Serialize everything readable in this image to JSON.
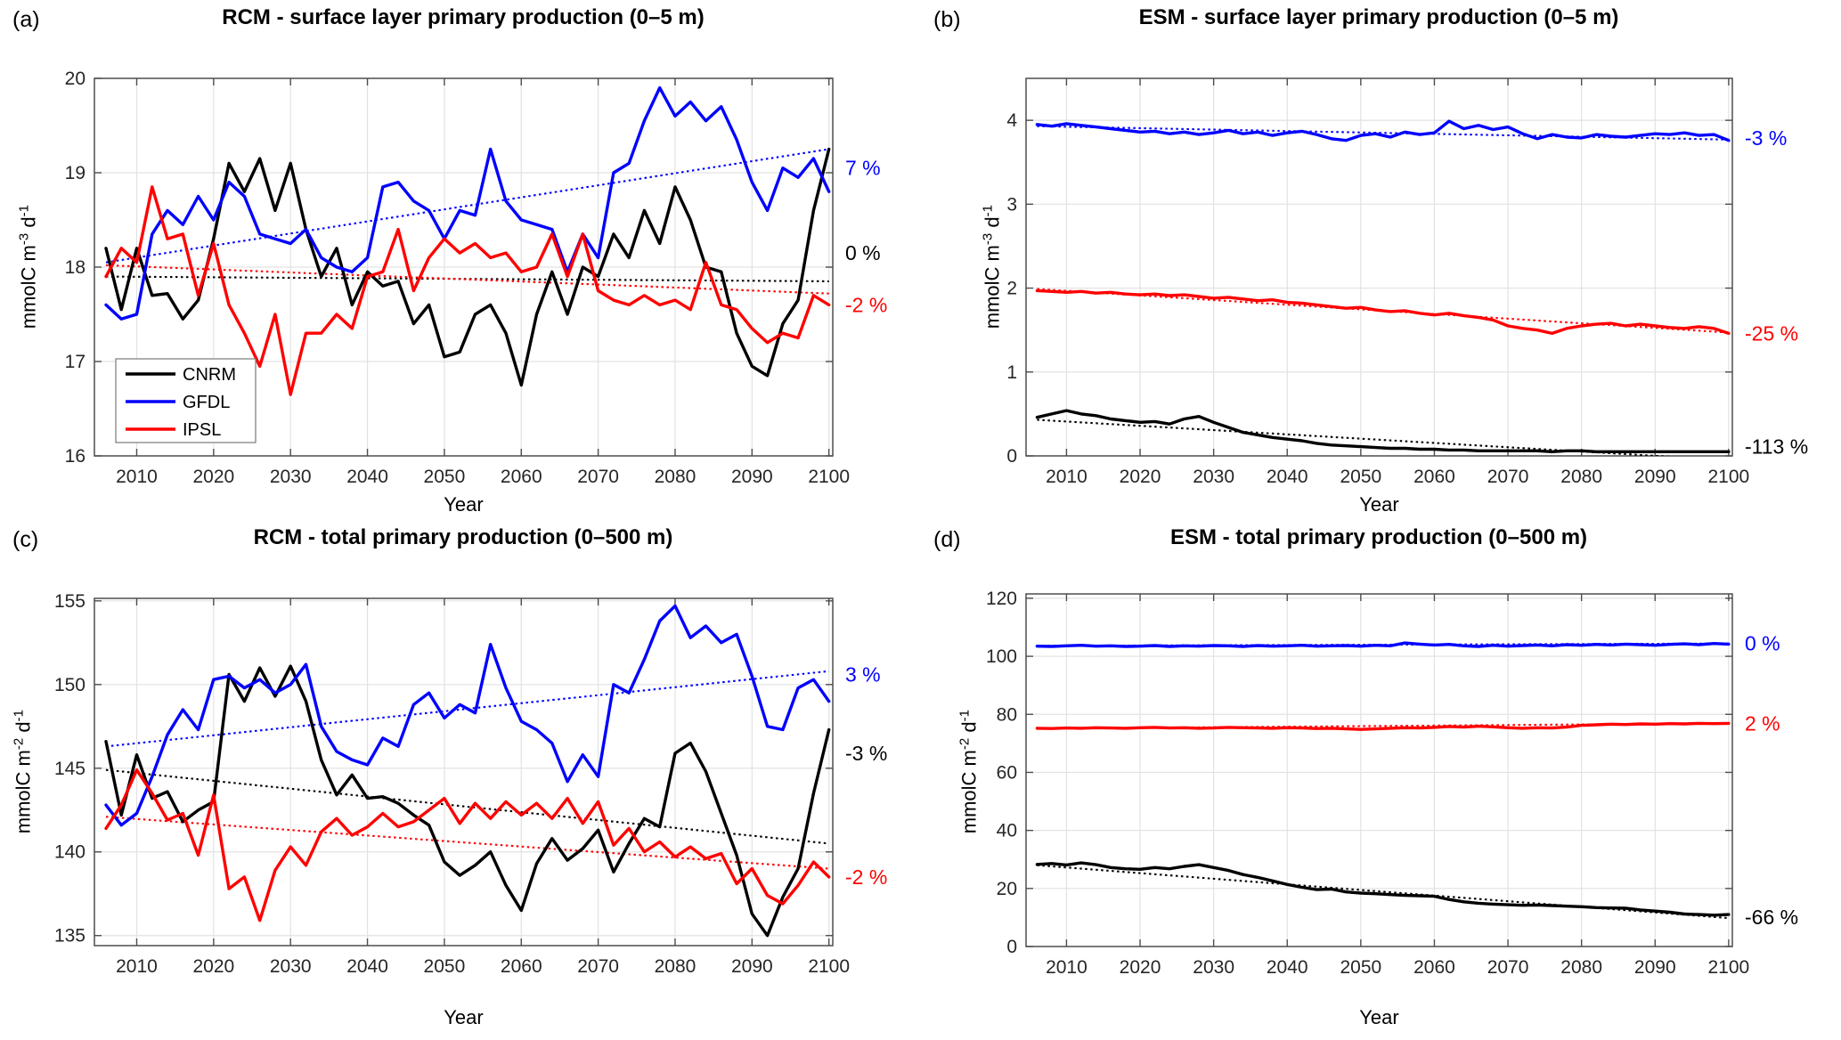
{
  "chart_data": {
    "type": "line",
    "x_start": 2006,
    "x_step": 2,
    "x_end": 2100,
    "xlim": [
      2004.5,
      2100.5
    ],
    "xticks": [
      2010,
      2020,
      2030,
      2040,
      2050,
      2060,
      2070,
      2080,
      2090,
      2100
    ],
    "grid": true,
    "legend": {
      "position": "panel-a-lower-left",
      "items": [
        {
          "label": "CNRM",
          "color": "#000000"
        },
        {
          "label": "GFDL",
          "color": "#0000ff"
        },
        {
          "label": "IPSL",
          "color": "#ff0000"
        }
      ]
    },
    "panels": [
      {
        "id": "a",
        "label": "(a)",
        "title": "RCM - surface layer primary production (0–5 m)",
        "xlabel": "Year",
        "ylabel_parts": [
          [
            "mmolC m",
            0
          ],
          [
            "-3",
            1
          ],
          [
            " d",
            0
          ],
          [
            "-1",
            1
          ]
        ],
        "ylim": [
          16,
          20
        ],
        "yticks": [
          16,
          17,
          18,
          19,
          20
        ],
        "has_legend": true,
        "series": [
          {
            "name": "CNRM",
            "color": "#000000",
            "values": [
              18.2,
              17.55,
              18.2,
              17.7,
              17.72,
              17.45,
              17.65,
              18.3,
              19.1,
              18.8,
              19.15,
              18.6,
              19.1,
              18.4,
              17.9,
              18.2,
              17.6,
              17.95,
              17.8,
              17.85,
              17.4,
              17.6,
              17.05,
              17.1,
              17.5,
              17.6,
              17.3,
              16.75,
              17.5,
              17.95,
              17.5,
              18.0,
              17.9,
              18.35,
              18.1,
              18.6,
              18.25,
              18.85,
              18.5,
              18.0,
              17.95,
              17.3,
              16.95,
              16.85,
              17.4,
              17.65,
              18.6,
              19.25
            ]
          },
          {
            "name": "GFDL",
            "color": "#0000ff",
            "values": [
              17.6,
              17.45,
              17.5,
              18.35,
              18.6,
              18.45,
              18.75,
              18.5,
              18.9,
              18.75,
              18.35,
              18.3,
              18.25,
              18.4,
              18.1,
              18.0,
              17.95,
              18.1,
              18.85,
              18.9,
              18.7,
              18.6,
              18.3,
              18.6,
              18.55,
              19.25,
              18.7,
              18.5,
              18.45,
              18.4,
              17.95,
              18.35,
              18.1,
              19.0,
              19.1,
              19.55,
              19.9,
              19.6,
              19.75,
              19.55,
              19.7,
              19.35,
              18.9,
              18.6,
              19.05,
              18.95,
              19.15,
              18.8
            ]
          },
          {
            "name": "IPSL",
            "color": "#ff0000",
            "values": [
              17.9,
              18.2,
              18.05,
              18.85,
              18.3,
              18.35,
              17.7,
              18.25,
              17.6,
              17.3,
              16.95,
              17.5,
              16.65,
              17.3,
              17.3,
              17.5,
              17.35,
              17.9,
              17.95,
              18.4,
              17.75,
              18.1,
              18.3,
              18.15,
              18.25,
              18.1,
              18.15,
              17.95,
              18.0,
              18.35,
              17.9,
              18.35,
              17.75,
              17.65,
              17.6,
              17.7,
              17.6,
              17.65,
              17.55,
              18.05,
              17.6,
              17.55,
              17.35,
              17.2,
              17.3,
              17.25,
              17.7,
              17.6
            ]
          }
        ],
        "trends": [
          {
            "name": "GFDL",
            "color": "#0000ff",
            "start": 18.05,
            "end": 19.25
          },
          {
            "name": "CNRM",
            "color": "#000000",
            "start": 17.9,
            "end": 17.85
          },
          {
            "name": "IPSL",
            "color": "#ff0000",
            "start": 18.02,
            "end": 17.72
          }
        ],
        "annotations": [
          {
            "text": "7 %",
            "color": "#0000ff",
            "at": 19.05
          },
          {
            "text": "0 %",
            "color": "#000000",
            "at": 18.15
          },
          {
            "text": "-2 %",
            "color": "#ff0000",
            "at": 17.6
          }
        ]
      },
      {
        "id": "b",
        "label": "(b)",
        "title": "ESM - surface layer primary production (0–5 m)",
        "xlabel": "Year",
        "ylabel_parts": [
          [
            "mmolC m",
            0
          ],
          [
            "-3",
            1
          ],
          [
            " d",
            0
          ],
          [
            "-1",
            1
          ]
        ],
        "ylim": [
          0,
          4.5
        ],
        "yticks": [
          0,
          1,
          2,
          3,
          4
        ],
        "has_legend": false,
        "series": [
          {
            "name": "CNRM",
            "color": "#000000",
            "values": [
              0.46,
              0.5,
              0.54,
              0.5,
              0.48,
              0.44,
              0.42,
              0.4,
              0.41,
              0.38,
              0.44,
              0.47,
              0.4,
              0.34,
              0.28,
              0.25,
              0.22,
              0.2,
              0.18,
              0.15,
              0.13,
              0.12,
              0.11,
              0.1,
              0.09,
              0.09,
              0.08,
              0.08,
              0.07,
              0.07,
              0.06,
              0.06,
              0.06,
              0.06,
              0.06,
              0.05,
              0.06,
              0.06,
              0.05,
              0.05,
              0.05,
              0.05,
              0.05,
              0.05,
              0.05,
              0.05,
              0.05,
              0.05
            ]
          },
          {
            "name": "GFDL",
            "color": "#0000ff",
            "values": [
              3.95,
              3.93,
              3.96,
              3.94,
              3.92,
              3.9,
              3.88,
              3.86,
              3.87,
              3.84,
              3.86,
              3.83,
              3.85,
              3.88,
              3.84,
              3.86,
              3.82,
              3.85,
              3.87,
              3.83,
              3.78,
              3.76,
              3.82,
              3.84,
              3.8,
              3.86,
              3.83,
              3.85,
              3.99,
              3.9,
              3.94,
              3.89,
              3.92,
              3.84,
              3.78,
              3.83,
              3.8,
              3.79,
              3.83,
              3.81,
              3.8,
              3.82,
              3.84,
              3.83,
              3.85,
              3.82,
              3.83,
              3.76
            ]
          },
          {
            "name": "IPSL",
            "color": "#ff0000",
            "values": [
              1.97,
              1.96,
              1.95,
              1.96,
              1.94,
              1.95,
              1.93,
              1.92,
              1.93,
              1.91,
              1.92,
              1.9,
              1.88,
              1.89,
              1.87,
              1.85,
              1.86,
              1.83,
              1.82,
              1.8,
              1.78,
              1.76,
              1.77,
              1.74,
              1.72,
              1.73,
              1.7,
              1.68,
              1.7,
              1.67,
              1.65,
              1.62,
              1.55,
              1.52,
              1.5,
              1.46,
              1.52,
              1.55,
              1.57,
              1.58,
              1.55,
              1.57,
              1.55,
              1.53,
              1.52,
              1.54,
              1.52,
              1.46
            ]
          }
        ],
        "trends": [
          {
            "name": "GFDL",
            "color": "#0000ff",
            "start": 3.93,
            "end": 3.77
          },
          {
            "name": "IPSL",
            "color": "#ff0000",
            "start": 1.99,
            "end": 1.47
          },
          {
            "name": "CNRM",
            "color": "#000000",
            "start": 0.43,
            "end": -0.05
          }
        ],
        "annotations": [
          {
            "text": "-3 %",
            "color": "#0000ff",
            "at": 3.79
          },
          {
            "text": "-25 %",
            "color": "#ff0000",
            "at": 1.46
          },
          {
            "text": "-113 %",
            "color": "#000000",
            "at": 0.11
          }
        ]
      },
      {
        "id": "c",
        "label": "(c)",
        "title": "RCM - total primary production (0–500 m)",
        "xlabel": "Year",
        "ylabel_parts": [
          [
            "mmolC m",
            0
          ],
          [
            "-2",
            1
          ],
          [
            " d",
            0
          ],
          [
            "-1",
            1
          ]
        ],
        "ylim": [
          134.4,
          155.15
        ],
        "yticks": [
          135,
          140,
          145,
          150,
          155
        ],
        "has_legend": false,
        "series": [
          {
            "name": "CNRM",
            "color": "#000000",
            "values": [
              146.6,
              142.2,
              145.8,
              143.2,
              143.6,
              141.8,
              142.5,
              143.0,
              150.6,
              149.0,
              151.0,
              149.3,
              151.1,
              149.0,
              145.5,
              143.4,
              144.6,
              143.2,
              143.3,
              142.9,
              142.2,
              141.6,
              139.4,
              138.6,
              139.2,
              140.0,
              138.0,
              136.5,
              139.3,
              140.8,
              139.5,
              140.2,
              141.3,
              138.8,
              140.5,
              142.0,
              141.5,
              145.9,
              146.5,
              144.8,
              142.3,
              139.8,
              136.3,
              135.0,
              137.3,
              139.0,
              143.5,
              147.3
            ]
          },
          {
            "name": "GFDL",
            "color": "#0000ff",
            "values": [
              142.8,
              141.6,
              142.3,
              144.5,
              147.0,
              148.5,
              147.3,
              150.3,
              150.5,
              149.8,
              150.3,
              149.5,
              150.0,
              151.2,
              147.5,
              146.0,
              145.5,
              145.2,
              146.8,
              146.3,
              148.8,
              149.5,
              148.0,
              148.8,
              148.3,
              152.4,
              149.8,
              147.8,
              147.3,
              146.5,
              144.2,
              145.8,
              144.5,
              150.0,
              149.5,
              151.5,
              153.8,
              154.7,
              152.8,
              153.5,
              152.5,
              153.0,
              150.5,
              147.5,
              147.3,
              149.8,
              150.3,
              149.0
            ]
          },
          {
            "name": "IPSL",
            "color": "#ff0000",
            "values": [
              141.4,
              142.8,
              144.9,
              143.5,
              141.9,
              142.3,
              139.8,
              143.4,
              137.8,
              138.5,
              135.9,
              138.9,
              140.3,
              139.2,
              141.2,
              142.0,
              141.0,
              141.5,
              142.3,
              141.5,
              141.8,
              142.5,
              143.2,
              141.7,
              142.9,
              142.0,
              143.0,
              142.2,
              142.9,
              142.0,
              143.2,
              141.7,
              143.0,
              140.4,
              141.4,
              140.0,
              140.6,
              139.7,
              140.3,
              139.6,
              139.9,
              138.1,
              139.0,
              137.4,
              136.9,
              138.0,
              139.4,
              138.5
            ]
          }
        ],
        "trends": [
          {
            "name": "GFDL",
            "color": "#0000ff",
            "start": 146.3,
            "end": 150.8
          },
          {
            "name": "CNRM",
            "color": "#000000",
            "start": 144.9,
            "end": 140.5
          },
          {
            "name": "IPSL",
            "color": "#ff0000",
            "start": 142.1,
            "end": 139.0
          }
        ],
        "annotations": [
          {
            "text": "3 %",
            "color": "#0000ff",
            "at": 150.6
          },
          {
            "text": "-3 %",
            "color": "#000000",
            "at": 145.9
          },
          {
            "text": "-2 %",
            "color": "#ff0000",
            "at": 138.5
          }
        ]
      },
      {
        "id": "d",
        "label": "(d)",
        "title": "ESM - total primary production (0–500 m)",
        "xlabel": "Year",
        "ylabel_parts": [
          [
            "mmolC m",
            0
          ],
          [
            "-2",
            1
          ],
          [
            " d",
            0
          ],
          [
            "-1",
            1
          ]
        ],
        "ylim": [
          0,
          121.5
        ],
        "yticks": [
          0,
          20,
          40,
          60,
          80,
          100,
          120
        ],
        "has_legend": false,
        "series": [
          {
            "name": "CNRM",
            "color": "#000000",
            "values": [
              28.3,
              28.6,
              28.1,
              28.8,
              28.2,
              27.2,
              26.8,
              26.6,
              27.2,
              26.8,
              27.6,
              28.2,
              27.2,
              26.2,
              24.8,
              23.8,
              22.6,
              21.4,
              20.4,
              19.6,
              19.8,
              18.8,
              18.4,
              18.2,
              17.9,
              17.6,
              17.5,
              17.3,
              16.2,
              15.4,
              14.9,
              14.6,
              14.4,
              14.2,
              14.3,
              14.1,
              13.9,
              13.7,
              13.4,
              13.3,
              13.2,
              12.6,
              12.2,
              11.8,
              11.2,
              11.0,
              10.8,
              11.0
            ]
          },
          {
            "name": "GFDL",
            "color": "#0000ff",
            "values": [
              103.5,
              103.4,
              103.6,
              103.8,
              103.5,
              103.6,
              103.4,
              103.5,
              103.7,
              103.4,
              103.6,
              103.5,
              103.7,
              103.6,
              103.4,
              103.7,
              103.5,
              103.6,
              103.8,
              103.5,
              103.6,
              103.7,
              103.5,
              103.8,
              103.6,
              104.6,
              104.2,
              103.9,
              104.1,
              103.6,
              103.4,
              103.8,
              103.5,
              103.7,
              103.9,
              103.6,
              104.0,
              103.8,
              104.1,
              103.9,
              104.2,
              104.0,
              103.8,
              104.1,
              104.3,
              104.0,
              104.4,
              104.2
            ]
          },
          {
            "name": "IPSL",
            "color": "#ff0000",
            "values": [
              75.2,
              75.1,
              75.3,
              75.2,
              75.4,
              75.3,
              75.2,
              75.4,
              75.5,
              75.3,
              75.4,
              75.2,
              75.3,
              75.5,
              75.4,
              75.3,
              75.2,
              75.4,
              75.3,
              75.1,
              75.2,
              75.0,
              74.8,
              75.0,
              75.2,
              75.4,
              75.3,
              75.5,
              75.8,
              75.6,
              75.9,
              75.7,
              75.4,
              75.2,
              75.4,
              75.3,
              75.6,
              76.2,
              76.4,
              76.6,
              76.5,
              76.7,
              76.6,
              76.8,
              76.7,
              76.9,
              76.8,
              76.9
            ]
          }
        ],
        "trends": [
          {
            "name": "GFDL",
            "color": "#0000ff",
            "start": 103.6,
            "end": 104.4
          },
          {
            "name": "IPSL",
            "color": "#ff0000",
            "start": 75.1,
            "end": 76.9
          },
          {
            "name": "CNRM",
            "color": "#000000",
            "start": 28.0,
            "end": 9.8
          }
        ],
        "annotations": [
          {
            "text": "0 %",
            "color": "#0000ff",
            "at": 104.4
          },
          {
            "text": "2 %",
            "color": "#ff0000",
            "at": 76.8
          },
          {
            "text": "-66 %",
            "color": "#000000",
            "at": 10.1
          }
        ]
      }
    ]
  }
}
